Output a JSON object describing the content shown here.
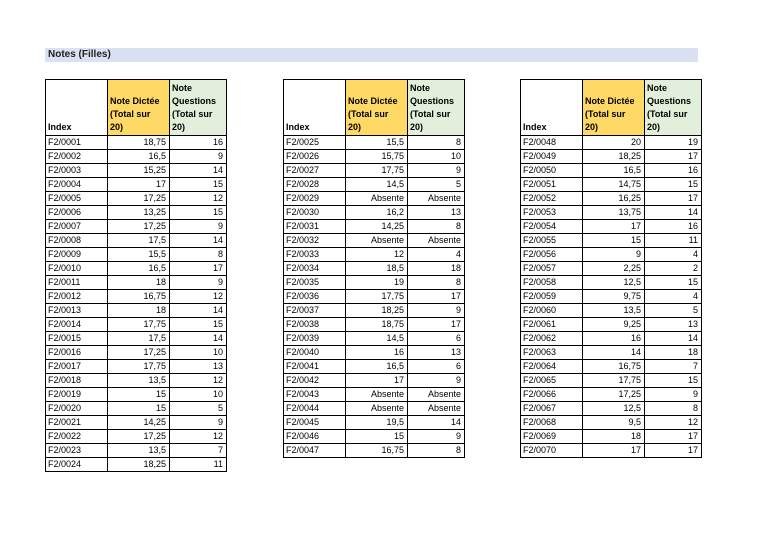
{
  "page": {
    "title": "Notes (Filles)"
  },
  "columns": {
    "index": "Index",
    "dictee": "Note Dictée\n(Total sur\n20)",
    "questions": "Note\nQuestions\n(Total sur\n20)"
  },
  "colors": {
    "title_bar_bg": "#D9E1F2",
    "dictee_header_bg": "#FFD966",
    "questions_header_bg": "#E2EFDA",
    "border": "#000000"
  },
  "tables": [
    {
      "rows": [
        [
          "F2/0001",
          "18,75",
          "16"
        ],
        [
          "F2/0002",
          "16,5",
          "9"
        ],
        [
          "F2/0003",
          "15,25",
          "14"
        ],
        [
          "F2/0004",
          "17",
          "15"
        ],
        [
          "F2/0005",
          "17,25",
          "12"
        ],
        [
          "F2/0006",
          "13,25",
          "15"
        ],
        [
          "F2/0007",
          "17,25",
          "9"
        ],
        [
          "F2/0008",
          "17,5",
          "14"
        ],
        [
          "F2/0009",
          "15,5",
          "8"
        ],
        [
          "F2/0010",
          "16,5",
          "17"
        ],
        [
          "F2/0011",
          "18",
          "9"
        ],
        [
          "F2/0012",
          "16,75",
          "12"
        ],
        [
          "F2/0013",
          "18",
          "14"
        ],
        [
          "F2/0014",
          "17,75",
          "15"
        ],
        [
          "F2/0015",
          "17,5",
          "14"
        ],
        [
          "F2/0016",
          "17,25",
          "10"
        ],
        [
          "F2/0017",
          "17,75",
          "13"
        ],
        [
          "F2/0018",
          "13,5",
          "12"
        ],
        [
          "F2/0019",
          "15",
          "10"
        ],
        [
          "F2/0020",
          "15",
          "5"
        ],
        [
          "F2/0021",
          "14,25",
          "9"
        ],
        [
          "F2/0022",
          "17,25",
          "12"
        ],
        [
          "F2/0023",
          "13,5",
          "7"
        ],
        [
          "F2/0024",
          "18,25",
          "11"
        ]
      ]
    },
    {
      "rows": [
        [
          "F2/0025",
          "15,5",
          "8"
        ],
        [
          "F2/0026",
          "15,75",
          "10"
        ],
        [
          "F2/0027",
          "17,75",
          "9"
        ],
        [
          "F2/0028",
          "14,5",
          "5"
        ],
        [
          "F2/0029",
          "Absente",
          "Absente"
        ],
        [
          "F2/0030",
          "16,2",
          "13"
        ],
        [
          "F2/0031",
          "14,25",
          "8"
        ],
        [
          "F2/0032",
          "Absente",
          "Absente"
        ],
        [
          "F2/0033",
          "12",
          "4"
        ],
        [
          "F2/0034",
          "18,5",
          "18"
        ],
        [
          "F2/0035",
          "19",
          "8"
        ],
        [
          "F2/0036",
          "17,75",
          "17"
        ],
        [
          "F2/0037",
          "18,25",
          "9"
        ],
        [
          "F2/0038",
          "18,75",
          "17"
        ],
        [
          "F2/0039",
          "14,5",
          "6"
        ],
        [
          "F2/0040",
          "16",
          "13"
        ],
        [
          "F2/0041",
          "16,5",
          "6"
        ],
        [
          "F2/0042",
          "17",
          "9"
        ],
        [
          "F2/0043",
          "Absente",
          "Absente"
        ],
        [
          "F2/0044",
          "Absente",
          "Absente"
        ],
        [
          "F2/0045",
          "19,5",
          "14"
        ],
        [
          "F2/0046",
          "15",
          "9"
        ],
        [
          "F2/0047",
          "16,75",
          "8"
        ]
      ]
    },
    {
      "rows": [
        [
          "F2/0048",
          "20",
          "19"
        ],
        [
          "F2/0049",
          "18,25",
          "17"
        ],
        [
          "F2/0050",
          "16,5",
          "16"
        ],
        [
          "F2/0051",
          "14,75",
          "15"
        ],
        [
          "F2/0052",
          "16,25",
          "17"
        ],
        [
          "F2/0053",
          "13,75",
          "14"
        ],
        [
          "F2/0054",
          "17",
          "16"
        ],
        [
          "F2/0055",
          "15",
          "11"
        ],
        [
          "F2/0056",
          "9",
          "4"
        ],
        [
          "F2/0057",
          "2,25",
          "2"
        ],
        [
          "F2/0058",
          "12,5",
          "15"
        ],
        [
          "F2/0059",
          "9,75",
          "4"
        ],
        [
          "F2/0060",
          "13,5",
          "5"
        ],
        [
          "F2/0061",
          "9,25",
          "13"
        ],
        [
          "F2/0062",
          "16",
          "14"
        ],
        [
          "F2/0063",
          "14",
          "18"
        ],
        [
          "F2/0064",
          "16,75",
          "7"
        ],
        [
          "F2/0065",
          "17,75",
          "15"
        ],
        [
          "F2/0066",
          "17,25",
          "9"
        ],
        [
          "F2/0067",
          "12,5",
          "8"
        ],
        [
          "F2/0068",
          "9,5",
          "12"
        ],
        [
          "F2/0069",
          "18",
          "17"
        ],
        [
          "F2/0070",
          "17",
          "17"
        ]
      ]
    }
  ]
}
